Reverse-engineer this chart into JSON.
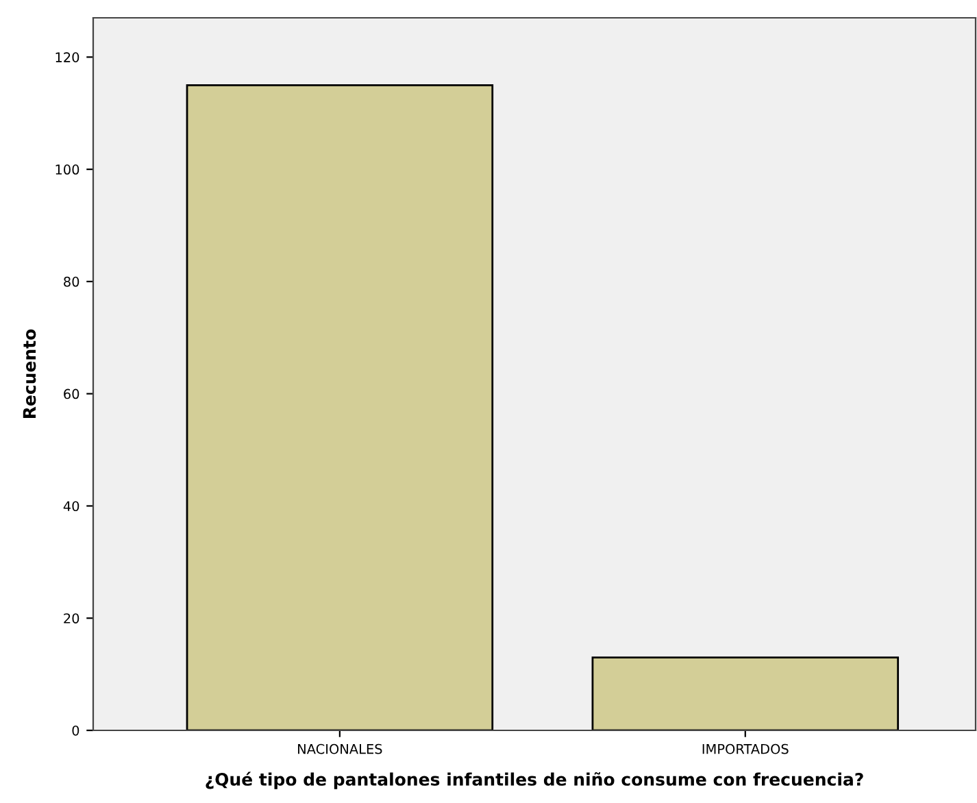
{
  "chart_data": {
    "type": "bar",
    "xlabel": "¿Qué tipo de pantalones infantiles de niño consume con frecuencia?",
    "ylabel": "Recuento",
    "categories": [
      "NACIONALES",
      "IMPORTADOS"
    ],
    "values": [
      115,
      13
    ],
    "color": "#d3ce97",
    "ylim": [
      0,
      127
    ],
    "yticks": [
      0,
      20,
      40,
      60,
      80,
      100,
      120
    ],
    "grid": false
  }
}
